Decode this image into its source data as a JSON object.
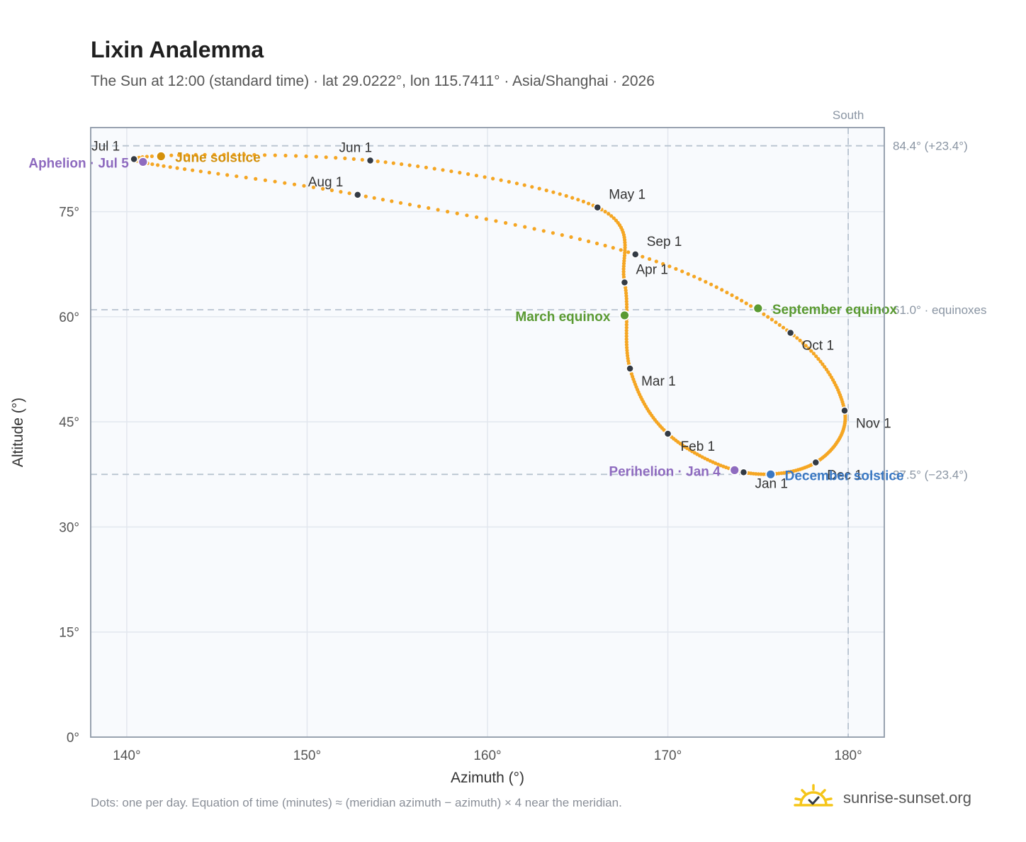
{
  "header": {
    "title": "Lixin Analemma",
    "subtitle": "The Sun at 12:00 (standard time) · lat 29.0222°, lon 115.7411° · Asia/Shanghai · 2026"
  },
  "footer": {
    "note": "Dots: one per day. Equation of time (minutes) ≈ (meridian azimuth − azimuth) × 4 near the meridian.",
    "brand": "sunrise-sunset.org"
  },
  "colors": {
    "curve": "#f5a623",
    "month_dot": "#333a44",
    "solstice_june": "#d4900a",
    "solstice_december": "#3a78c3",
    "equinox": "#5a9a32",
    "apsis": "#8e6bbf",
    "ref_line": "#b8c4d0",
    "plot_bg": "#f8fafd",
    "grid": "#e2e7ee"
  },
  "chart_data": {
    "type": "scatter",
    "xlabel": "Azimuth (°)",
    "ylabel": "Altitude (°)",
    "xlim": [
      138,
      182
    ],
    "ylim": [
      0,
      87
    ],
    "x_ticks": [
      {
        "value": 140,
        "label": "140°"
      },
      {
        "value": 150,
        "label": "150°"
      },
      {
        "value": 160,
        "label": "160°"
      },
      {
        "value": 170,
        "label": "170°"
      },
      {
        "value": 180,
        "label": "180°"
      }
    ],
    "y_ticks": [
      {
        "value": 0,
        "label": "0°"
      },
      {
        "value": 15,
        "label": "15°"
      },
      {
        "value": 30,
        "label": "30°"
      },
      {
        "value": 45,
        "label": "45°"
      },
      {
        "value": 60,
        "label": "60°"
      },
      {
        "value": 75,
        "label": "75°"
      }
    ],
    "grid": true,
    "reference_lines": {
      "horizontal": [
        {
          "y": 84.4,
          "label": "84.4° (+23.4°)"
        },
        {
          "y": 61.0,
          "label": "61.0° · equinoxes"
        },
        {
          "y": 37.5,
          "label": "37.5° (−23.4°)"
        }
      ],
      "vertical": [
        {
          "x": 180,
          "label": "South"
        }
      ]
    },
    "month_points": [
      {
        "label": "Jan 1",
        "az": 174.2,
        "alt": 37.8
      },
      {
        "label": "Feb 1",
        "az": 170.0,
        "alt": 43.3
      },
      {
        "label": "Mar 1",
        "az": 167.9,
        "alt": 52.6
      },
      {
        "label": "Apr 1",
        "az": 167.6,
        "alt": 64.9
      },
      {
        "label": "May 1",
        "az": 166.1,
        "alt": 75.6
      },
      {
        "label": "Jun 1",
        "az": 153.5,
        "alt": 82.3
      },
      {
        "label": "Jul 1",
        "az": 140.4,
        "alt": 82.5
      },
      {
        "label": "Aug 1",
        "az": 152.8,
        "alt": 77.4
      },
      {
        "label": "Sep 1",
        "az": 168.2,
        "alt": 68.9
      },
      {
        "label": "Oct 1",
        "az": 176.8,
        "alt": 57.7
      },
      {
        "label": "Nov 1",
        "az": 179.8,
        "alt": 46.6
      },
      {
        "label": "Dec 1",
        "az": 178.2,
        "alt": 39.2
      }
    ],
    "events": [
      {
        "label": "June solstice",
        "az": 141.9,
        "alt": 82.9,
        "kind": "solstice_june"
      },
      {
        "label": "December solstice",
        "az": 175.7,
        "alt": 37.5,
        "kind": "solstice_december"
      },
      {
        "label": "March equinox",
        "az": 167.6,
        "alt": 60.2,
        "kind": "equinox"
      },
      {
        "label": "September equinox",
        "az": 175.0,
        "alt": 61.2,
        "kind": "equinox"
      },
      {
        "label": "Perihelion · Jan 4",
        "az": 173.7,
        "alt": 38.1,
        "kind": "apsis"
      },
      {
        "label": "Aphelion · Jul 5",
        "az": 140.9,
        "alt": 82.1,
        "kind": "apsis"
      }
    ]
  }
}
